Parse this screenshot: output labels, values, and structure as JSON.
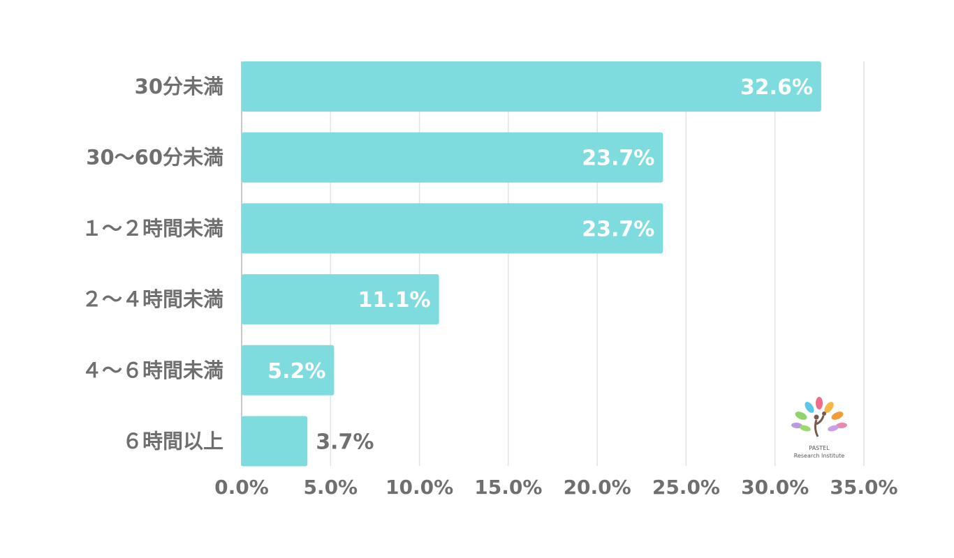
{
  "chart_data": {
    "type": "bar",
    "orientation": "horizontal",
    "categories": [
      "30分未満",
      "30〜60分未満",
      "１〜２時間未満",
      "２〜４時間未満",
      "４〜６時間未満",
      "６時間以上"
    ],
    "values": [
      32.6,
      23.7,
      23.7,
      11.1,
      5.2,
      3.7
    ],
    "value_labels": [
      "32.6%",
      "23.7%",
      "23.7%",
      "11.1%",
      "5.2%",
      "3.7%"
    ],
    "title": "",
    "xlabel": "",
    "ylabel": "",
    "xlim": [
      0,
      35
    ],
    "x_ticks": [
      0,
      5,
      10,
      15,
      20,
      25,
      30,
      35
    ],
    "x_tick_labels": [
      "0.0%",
      "5.0%",
      "10.0%",
      "15.0%",
      "20.0%",
      "25.0%",
      "30.0%",
      "35.0%"
    ],
    "grid": "vertical",
    "legend": "none",
    "colors": {
      "bar": "#7fdcde",
      "label_inside": "#ffffff",
      "label_outside": "#6f6f6f",
      "grid": "#e2e2e2",
      "axis_text": "#6f6f6f"
    }
  },
  "logo": {
    "line1": "PASTEL",
    "line2": "Research Institute",
    "icon": "tree-of-leaves-logo-icon"
  }
}
